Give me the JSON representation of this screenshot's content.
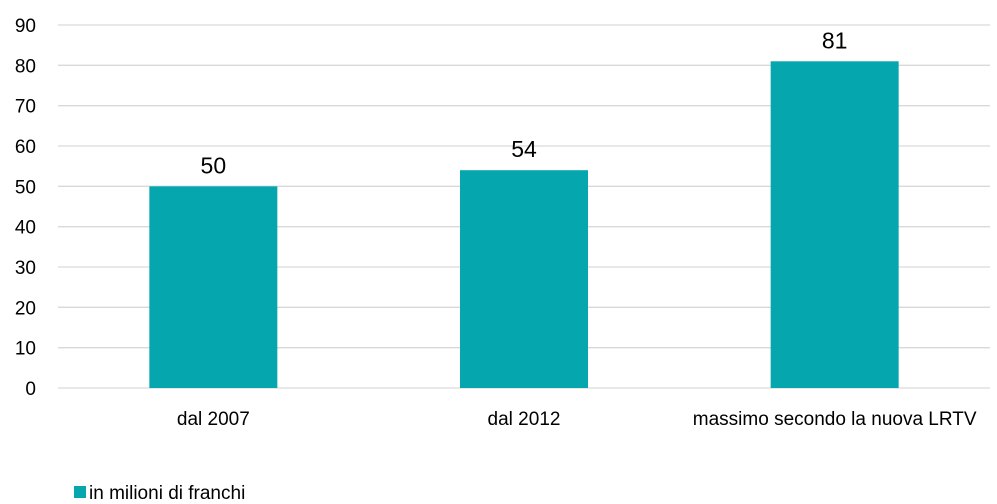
{
  "chart_data": {
    "type": "bar",
    "categories": [
      "dal 2007",
      "dal 2012",
      "massimo secondo la nuova LRTV"
    ],
    "series": [
      {
        "name": "in milioni di franchi",
        "values": [
          50,
          54,
          81
        ],
        "color": "#06A6AF"
      }
    ],
    "data_labels": [
      "50",
      "54",
      "81"
    ],
    "yticks": [
      "0",
      "10",
      "20",
      "30",
      "40",
      "50",
      "60",
      "70",
      "80",
      "90"
    ],
    "ylim": [
      0,
      90
    ],
    "grid": true,
    "gridline_color": "#D9D9D9",
    "legend_position": "bottom-left",
    "title": "",
    "xlabel": "",
    "ylabel": ""
  }
}
